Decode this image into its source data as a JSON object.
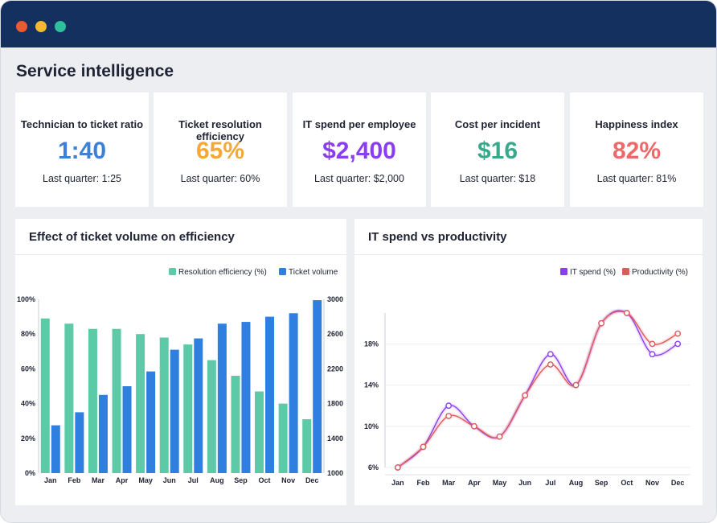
{
  "window": {
    "controls": [
      "close",
      "minimize",
      "maximize"
    ]
  },
  "page": {
    "title": "Service intelligence"
  },
  "kpis": [
    {
      "label": "Technician to ticket ratio",
      "value": "1:40",
      "sub": "Last quarter: 1:25",
      "color": "#3b82d6"
    },
    {
      "label": "Ticket resolution efficiency",
      "value": "65%",
      "sub": "Last quarter: 60%",
      "color": "#f5a83a"
    },
    {
      "label": "IT spend per employee",
      "value": "$2,400",
      "sub": "Last quarter: $2,000",
      "color": "#8b3df0"
    },
    {
      "label": "Cost per incident",
      "value": "$16",
      "sub": "Last quarter: $18",
      "color": "#3aa88c"
    },
    {
      "label": "Happiness index",
      "value": "82%",
      "sub": "Last quarter: 81%",
      "color": "#ee6a6a"
    }
  ],
  "panels": {
    "left_title": "Effect of ticket volume on efficiency",
    "right_title": "IT spend vs productivity"
  },
  "chart_data": [
    {
      "type": "bar",
      "title": "Effect of ticket volume on efficiency",
      "categories": [
        "Jan",
        "Feb",
        "Mar",
        "Apr",
        "May",
        "Jun",
        "Jul",
        "Aug",
        "Sep",
        "Oct",
        "Nov",
        "Dec"
      ],
      "series": [
        {
          "name": "Resolution efficiency (%)",
          "axis": "left",
          "color": "#5cc9a7",
          "values": [
            89,
            86,
            83,
            83,
            80,
            78,
            74,
            65,
            56,
            47,
            40,
            31
          ]
        },
        {
          "name": "Ticket volume",
          "axis": "right",
          "color": "#2f7fe0",
          "values": [
            1550,
            1700,
            1900,
            2000,
            2170,
            2420,
            2550,
            2720,
            2740,
            2800,
            2840,
            2990
          ]
        }
      ],
      "y_left": {
        "ticks": [
          "0%",
          "20%",
          "40%",
          "60%",
          "80%",
          "100%"
        ],
        "range": [
          0,
          100
        ]
      },
      "y_right": {
        "ticks": [
          "1000",
          "1400",
          "1800",
          "2200",
          "2600",
          "3000"
        ],
        "range": [
          1000,
          3000
        ]
      },
      "legend": "top-right",
      "grid": false
    },
    {
      "type": "line",
      "title": "IT spend vs productivity",
      "categories": [
        "Jan",
        "Feb",
        "Mar",
        "Apr",
        "May",
        "Jun",
        "Jul",
        "Aug",
        "Sep",
        "Oct",
        "Nov",
        "Dec"
      ],
      "series": [
        {
          "name": "IT spend (%)",
          "color": "#8b3df0",
          "values": [
            6,
            8,
            12,
            10,
            9,
            13,
            17,
            14,
            20,
            21,
            17,
            18
          ]
        },
        {
          "name": "Productivity (%)",
          "color": "#e05a5a",
          "values": [
            6,
            8,
            11,
            10,
            9,
            13,
            16,
            14,
            20,
            21,
            18,
            19
          ]
        }
      ],
      "y": {
        "ticks": [
          "6%",
          "10%",
          "14%",
          "18%"
        ],
        "range": [
          6,
          18
        ]
      },
      "legend": "top-right",
      "grid": true
    }
  ]
}
